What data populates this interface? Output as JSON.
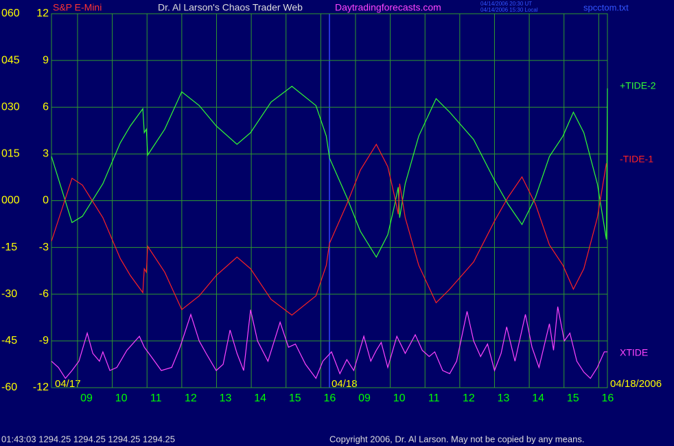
{
  "chart_data": {
    "type": "line",
    "title": "S&P E-Mini",
    "subtitle": "Dr. Al Larson's Chaos Trader Web",
    "site": "Daytradingforecasts.com",
    "timestamp_ut": "04/14/2006 20:30 UT",
    "timestamp_local": "04/14/2006 15:30 Local",
    "file": "spcctom.txt",
    "status": "01:43:03  1294.25 1294.25 1294.25 1294.25",
    "copyright": "Copyright 2006, Dr. Al Larson. May not be copied by any means.",
    "date_labels": [
      "04/17",
      "04/18",
      "04/18/2006"
    ],
    "grid": true,
    "xlim": [
      0,
      16
    ],
    "xticks": [
      {
        "value": 0.75,
        "label": "09"
      },
      {
        "value": 1.75,
        "label": "10"
      },
      {
        "value": 2.75,
        "label": "11"
      },
      {
        "value": 3.75,
        "label": "12"
      },
      {
        "value": 4.75,
        "label": "13"
      },
      {
        "value": 5.75,
        "label": "14"
      },
      {
        "value": 6.75,
        "label": "15"
      },
      {
        "value": 7.75,
        "label": "16"
      },
      {
        "value": 8.75,
        "label": "09"
      },
      {
        "value": 9.75,
        "label": "10"
      },
      {
        "value": 10.75,
        "label": "11"
      },
      {
        "value": 11.75,
        "label": "12"
      },
      {
        "value": 12.75,
        "label": "13"
      },
      {
        "value": 13.75,
        "label": "14"
      },
      {
        "value": 14.75,
        "label": "15"
      },
      {
        "value": 15.75,
        "label": "16"
      }
    ],
    "ylim": [
      -12,
      12
    ],
    "yticks": [
      12,
      9,
      6,
      3,
      0,
      -3,
      -6,
      -9,
      -12
    ],
    "y2lim": [
      -60,
      60
    ],
    "y2ticks": [
      {
        "value": 60,
        "label": "060"
      },
      {
        "value": 45,
        "label": "045"
      },
      {
        "value": 30,
        "label": "030"
      },
      {
        "value": 15,
        "label": "015"
      },
      {
        "value": 0,
        "label": "000"
      },
      -15,
      -30,
      -45,
      -60
    ],
    "series": [
      {
        "name": "+TIDE-2",
        "color": "#33ff33",
        "x": [
          0,
          0.59,
          0.89,
          1.48,
          1.98,
          2.27,
          2.63,
          2.67,
          2.73,
          2.77,
          3.26,
          3.75,
          4.25,
          4.74,
          5.34,
          5.73,
          6.32,
          6.92,
          7.61,
          7.91,
          8.0,
          8.5,
          8.89,
          9.35,
          9.68,
          9.88,
          9.98,
          10.02,
          10.18,
          10.57,
          11.07,
          11.46,
          12.15,
          12.75,
          13.14,
          13.54,
          13.93,
          14.33,
          14.72,
          15.02,
          15.32,
          15.71,
          15.97,
          16.0
        ],
        "values": [
          2.84,
          -1.4,
          -1.0,
          1.09,
          3.71,
          4.8,
          5.9,
          4.37,
          4.59,
          2.93,
          4.59,
          6.99,
          6.11,
          4.8,
          3.62,
          4.37,
          6.33,
          7.34,
          6.11,
          4.15,
          2.75,
          0.22,
          -1.97,
          -3.62,
          -2.18,
          -0.22,
          0.87,
          -1.09,
          1.09,
          4.15,
          6.55,
          5.68,
          3.93,
          1.31,
          -0.22,
          -1.53,
          0.22,
          2.84,
          4.15,
          5.68,
          4.37,
          1.09,
          -2.49,
          7.21
        ]
      },
      {
        "name": "-TIDE-1",
        "color": "#ff2222",
        "x": [
          0,
          0.59,
          0.89,
          1.48,
          1.98,
          2.27,
          2.63,
          2.67,
          2.73,
          2.77,
          3.26,
          3.75,
          4.25,
          4.74,
          5.34,
          5.73,
          6.32,
          6.92,
          7.61,
          7.91,
          8.0,
          8.5,
          8.89,
          9.35,
          9.68,
          9.88,
          9.98,
          10.02,
          10.18,
          10.57,
          11.07,
          11.46,
          12.15,
          12.75,
          13.14,
          13.54,
          13.93,
          14.33,
          14.72,
          15.02,
          15.32,
          15.71,
          15.97
        ],
        "values": [
          -2.6,
          1.44,
          1.0,
          -1.09,
          -3.71,
          -4.8,
          -5.9,
          -4.37,
          -4.59,
          -2.93,
          -4.59,
          -6.99,
          -6.11,
          -4.8,
          -3.62,
          -4.37,
          -6.33,
          -7.34,
          -6.11,
          -4.15,
          -2.75,
          -0.22,
          1.97,
          3.62,
          2.18,
          0.22,
          -0.87,
          1.09,
          -1.09,
          -4.15,
          -6.55,
          -5.68,
          -3.93,
          -1.31,
          0.22,
          1.53,
          -0.22,
          -2.84,
          -4.15,
          -5.68,
          -4.37,
          -1.09,
          2.4
        ]
      },
      {
        "name": "XTIDE",
        "color": "#ff44ff",
        "x": [
          0,
          0.2,
          0.4,
          0.59,
          0.79,
          1.03,
          1.19,
          1.38,
          1.48,
          1.68,
          1.88,
          2.17,
          2.53,
          2.67,
          2.87,
          3.16,
          3.46,
          3.7,
          4.01,
          4.25,
          4.45,
          4.74,
          4.94,
          5.14,
          5.34,
          5.53,
          5.73,
          5.93,
          6.23,
          6.58,
          6.82,
          7.02,
          7.31,
          7.61,
          7.81,
          8.06,
          8.3,
          8.5,
          8.7,
          8.99,
          9.19,
          9.35,
          9.49,
          9.68,
          9.94,
          10.18,
          10.47,
          10.67,
          10.87,
          11.03,
          11.26,
          11.46,
          11.66,
          11.96,
          12.15,
          12.35,
          12.55,
          12.75,
          12.94,
          13.1,
          13.34,
          13.64,
          13.83,
          14.03,
          14.33,
          14.45,
          14.57,
          14.76,
          14.92,
          15.12,
          15.32,
          15.51,
          15.71,
          15.91,
          16.0
        ],
        "values": [
          -10.3,
          -10.7,
          -11.4,
          -10.9,
          -10.3,
          -8.5,
          -9.8,
          -10.3,
          -9.7,
          -10.9,
          -10.7,
          -9.6,
          -8.7,
          -9.4,
          -10.0,
          -10.9,
          -10.7,
          -9.4,
          -7.3,
          -9.0,
          -9.8,
          -10.9,
          -10.5,
          -8.3,
          -9.8,
          -10.9,
          -7.0,
          -9.0,
          -10.3,
          -7.8,
          -9.4,
          -9.2,
          -10.5,
          -11.4,
          -10.3,
          -9.7,
          -11.1,
          -10.2,
          -10.9,
          -8.7,
          -10.3,
          -9.6,
          -9.1,
          -10.7,
          -8.7,
          -9.8,
          -8.6,
          -9.6,
          -10.0,
          -9.7,
          -10.9,
          -11.1,
          -10.3,
          -7.1,
          -9.0,
          -10.0,
          -9.2,
          -10.9,
          -9.8,
          -8.1,
          -10.3,
          -7.3,
          -9.4,
          -10.7,
          -7.9,
          -9.6,
          -6.8,
          -9.0,
          -8.5,
          -10.3,
          -11.0,
          -11.4,
          -10.7,
          -9.7,
          -9.7
        ]
      }
    ]
  }
}
